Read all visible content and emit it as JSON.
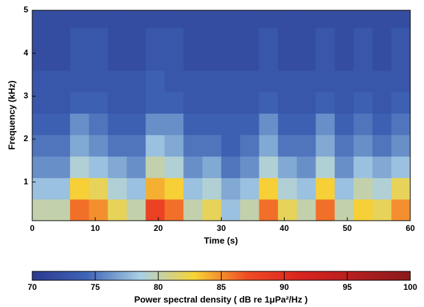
{
  "chart_data": {
    "type": "heatmap",
    "xlabel": "Time (s)",
    "ylabel": "Frequency (kHz)",
    "colorbar_label": "Power spectral density ( dB re 1μPa²/Hz )",
    "x_bins": [
      0,
      3,
      6,
      9,
      12,
      15,
      18,
      21,
      24,
      27,
      30,
      33,
      36,
      39,
      42,
      45,
      48,
      51,
      54,
      57,
      60
    ],
    "y_bins": [
      0.1,
      0.6,
      1.1,
      1.6,
      2.1,
      2.6,
      3.1,
      3.6,
      4.1,
      4.6,
      5
    ],
    "z": [
      [
        80,
        78,
        76,
        75,
        74,
        73,
        73,
        72,
        72,
        72
      ],
      [
        80,
        78,
        76,
        75,
        74,
        73,
        73,
        72,
        72,
        72
      ],
      [
        86,
        83,
        79,
        77,
        76,
        74,
        73,
        73,
        73,
        72
      ],
      [
        85,
        82,
        78,
        76,
        75,
        74,
        73,
        73,
        73,
        72
      ],
      [
        82,
        79,
        77,
        75,
        74,
        73,
        73,
        72,
        72,
        72
      ],
      [
        80,
        78,
        76,
        75,
        74,
        73,
        73,
        72,
        72,
        72
      ],
      [
        88,
        84,
        80,
        78,
        76,
        74,
        74,
        73,
        73,
        72
      ],
      [
        86,
        83,
        79,
        77,
        76,
        74,
        73,
        73,
        73,
        72
      ],
      [
        80,
        78,
        76,
        75,
        74,
        73,
        73,
        72,
        72,
        72
      ],
      [
        82,
        79,
        77,
        75,
        74,
        73,
        73,
        72,
        72,
        72
      ],
      [
        78,
        77,
        75,
        74,
        74,
        73,
        73,
        72,
        72,
        72
      ],
      [
        80,
        78,
        76,
        75,
        74,
        73,
        73,
        72,
        72,
        72
      ],
      [
        86,
        83,
        79,
        77,
        76,
        74,
        73,
        73,
        73,
        72
      ],
      [
        82,
        79,
        77,
        75,
        74,
        73,
        73,
        72,
        72,
        72
      ],
      [
        80,
        78,
        76,
        75,
        74,
        73,
        73,
        72,
        72,
        72
      ],
      [
        86,
        83,
        79,
        77,
        76,
        74,
        73,
        73,
        73,
        72
      ],
      [
        80,
        78,
        76,
        75,
        74,
        73,
        73,
        72,
        72,
        72
      ],
      [
        83,
        80,
        78,
        76,
        75,
        74,
        73,
        73,
        73,
        72
      ],
      [
        82,
        79,
        77,
        75,
        74,
        73,
        73,
        72,
        72,
        72
      ],
      [
        85,
        82,
        78,
        76,
        75,
        74,
        73,
        73,
        73,
        72
      ]
    ],
    "xlim": [
      0,
      60
    ],
    "xticks": [
      0,
      10,
      20,
      30,
      40,
      50,
      60
    ],
    "ylim": [
      0.1,
      5
    ],
    "yticks": [
      1,
      2,
      3,
      4,
      5
    ],
    "clim": [
      70,
      100
    ],
    "cticks": [
      70,
      75,
      80,
      85,
      90,
      95,
      100
    ],
    "colormap": [
      "#2b3a8f",
      "#3f63b5",
      "#a8d0e6",
      "#f7d437",
      "#ef4a24",
      "#d8231f",
      "#b21f1f",
      "#8a1a1a"
    ]
  }
}
